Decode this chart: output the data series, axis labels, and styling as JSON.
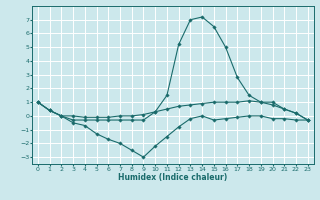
{
  "xlabel": "Humidex (Indice chaleur)",
  "background_color": "#cce8ec",
  "grid_color": "#ffffff",
  "line_color": "#1a6b6b",
  "marker_color": "#1a6b6b",
  "xlim": [
    -0.5,
    23.5
  ],
  "ylim": [
    -3.5,
    8.0
  ],
  "yticks": [
    -3,
    -2,
    -1,
    0,
    1,
    2,
    3,
    4,
    5,
    6,
    7
  ],
  "xticks": [
    0,
    1,
    2,
    3,
    4,
    5,
    6,
    7,
    8,
    9,
    10,
    11,
    12,
    13,
    14,
    15,
    16,
    17,
    18,
    19,
    20,
    21,
    22,
    23
  ],
  "lines": [
    {
      "x": [
        0,
        1,
        2,
        3,
        4,
        5,
        6,
        7,
        8,
        9,
        10,
        11,
        12,
        13,
        14,
        15,
        16,
        17,
        18,
        19,
        20,
        21,
        22,
        23
      ],
      "y": [
        1.0,
        0.4,
        0.0,
        0.0,
        -0.1,
        -0.1,
        -0.1,
        0.0,
        0.0,
        0.1,
        0.3,
        0.5,
        0.7,
        0.8,
        0.9,
        1.0,
        1.0,
        1.0,
        1.1,
        1.0,
        0.8,
        0.5,
        0.2,
        -0.3
      ]
    },
    {
      "x": [
        0,
        1,
        2,
        3,
        4,
        5,
        6,
        7,
        8,
        9,
        10,
        11,
        12,
        13,
        14,
        15,
        16,
        17,
        18,
        19,
        20,
        21,
        22,
        23
      ],
      "y": [
        1.0,
        0.4,
        0.0,
        -0.3,
        -0.3,
        -0.3,
        -0.3,
        -0.3,
        -0.3,
        -0.3,
        0.3,
        1.5,
        5.2,
        7.0,
        7.2,
        6.5,
        5.0,
        2.8,
        1.5,
        1.0,
        1.0,
        0.5,
        0.2,
        -0.3
      ]
    },
    {
      "x": [
        0,
        1,
        2,
        3,
        4,
        5,
        6,
        7,
        8,
        9,
        10,
        11,
        12,
        13,
        14,
        15,
        16,
        17,
        18,
        19,
        20,
        21,
        22,
        23
      ],
      "y": [
        1.0,
        0.4,
        0.0,
        -0.5,
        -0.7,
        -1.3,
        -1.7,
        -2.0,
        -2.5,
        -3.0,
        -2.2,
        -1.5,
        -0.8,
        -0.2,
        0.0,
        -0.3,
        -0.2,
        -0.1,
        0.0,
        0.0,
        -0.2,
        -0.2,
        -0.3,
        -0.3
      ]
    }
  ]
}
